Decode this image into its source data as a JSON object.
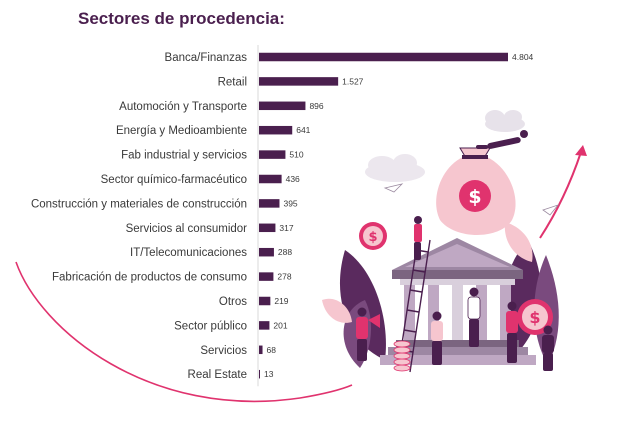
{
  "title": "Sectores de procedencia:",
  "chart_data": {
    "type": "bar",
    "orientation": "horizontal",
    "title": "Sectores de procedencia:",
    "categories": [
      "Banca/Finanzas",
      "Retail",
      "Automoción y Transporte",
      "Energía y Medioambiente",
      "Fab industrial y servicios",
      "Sector químico-farmacéutico",
      "Construcción y materiales de construcción",
      "Servicios al consumidor",
      "IT/Telecomunicaciones",
      "Fabricación de productos de consumo",
      "Otros",
      "Sector público",
      "Servicios",
      "Real Estate"
    ],
    "values": [
      4804,
      1527,
      896,
      641,
      510,
      436,
      395,
      317,
      288,
      278,
      219,
      201,
      68,
      13
    ],
    "value_labels": [
      "4.804",
      "1.527",
      "896",
      "641",
      "510",
      "436",
      "395",
      "317",
      "288",
      "278",
      "219",
      "201",
      "68",
      "13"
    ],
    "xlim": [
      0,
      4804
    ],
    "bar_color": "#4a1f4e",
    "grid": false,
    "legend": "none"
  },
  "colors": {
    "title": "#4a1f4e",
    "bar": "#4a1f4e",
    "accent_pink": "#e0336e",
    "light_pink": "#f6c6cf",
    "plum": "#4a1f4e",
    "lilac": "#bfa8c3"
  },
  "illustration": {
    "name": "finance-bank-illustration",
    "icons": [
      "money-bag-icon",
      "bank-building-icon",
      "dollar-coin-icon",
      "growth-arrow-icon",
      "people-figures-icon"
    ]
  }
}
